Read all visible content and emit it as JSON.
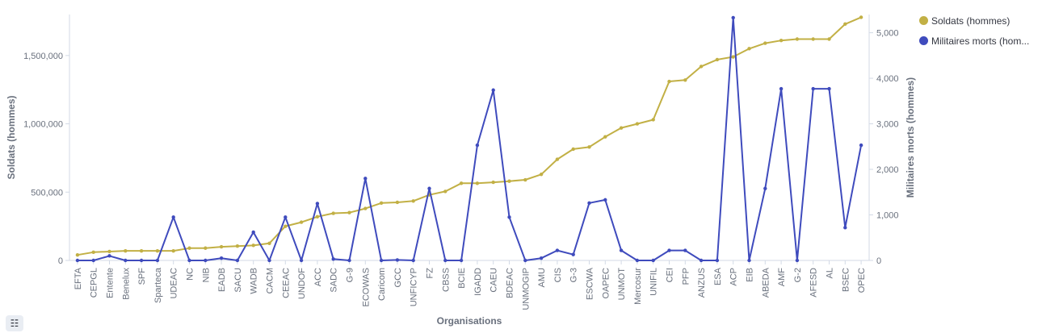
{
  "chart_data": {
    "type": "line",
    "xlabel": "Organisations",
    "ylabel_left": "Soldats (hommes)",
    "ylabel_right": "Militaires morts (hommes)",
    "ylim_left": [
      0,
      1800000
    ],
    "ylim_right": [
      0,
      5400
    ],
    "yticks_left": [
      0,
      500000,
      1000000,
      1500000
    ],
    "yticks_left_labels": [
      "0",
      "500,000",
      "1,000,000",
      "1,500,000"
    ],
    "yticks_right": [
      0,
      1000,
      2000,
      3000,
      4000,
      5000
    ],
    "yticks_right_labels": [
      "0",
      "1,000",
      "2,000",
      "3,000",
      "4,000",
      "5,000"
    ],
    "grid": false,
    "legend_position": "top-right",
    "categories": [
      "EFTA",
      "CEPGL",
      "Entente",
      "Benelux",
      "SPF",
      "Sparteca",
      "UDEAC",
      "NC",
      "NIB",
      "EADB",
      "SACU",
      "WADB",
      "CACM",
      "CEEAC",
      "UNDOF",
      "ACC",
      "SADC",
      "G-9",
      "ECOWAS",
      "Caricom",
      "GCC",
      "UNFICYP",
      "FZ",
      "CBSS",
      "BCIE",
      "IGADD",
      "CAEU",
      "BDEAC",
      "UNMOGIP",
      "AMU",
      "CIS",
      "G-3",
      "ESCWA",
      "OAPEC",
      "UNMOT",
      "Mercosur",
      "UNIFIL",
      "CEI",
      "PFP",
      "ANZUS",
      "ESA",
      "ACP",
      "EIB",
      "ABEDA",
      "AMF",
      "G-2",
      "AFESD",
      "AL",
      "BSEC",
      "OPEC"
    ],
    "series": [
      {
        "name": "Soldats (hommes)",
        "axis": "left",
        "color": "#c2b045",
        "values": [
          40000,
          60000,
          65000,
          70000,
          70000,
          70000,
          70000,
          90000,
          90000,
          100000,
          105000,
          110000,
          125000,
          250000,
          280000,
          320000,
          345000,
          350000,
          380000,
          420000,
          425000,
          435000,
          480000,
          505000,
          565000,
          565000,
          572000,
          580000,
          590000,
          630000,
          740000,
          815000,
          830000,
          905000,
          970000,
          1000000,
          1030000,
          1310000,
          1320000,
          1420000,
          1470000,
          1490000,
          1550000,
          1590000,
          1610000,
          1620000,
          1620000,
          1620000,
          1730000,
          1780000
        ]
      },
      {
        "name": "Militaires morts (hom...",
        "axis": "right",
        "color": "#3f4bbd",
        "values": [
          0,
          0,
          100,
          0,
          0,
          0,
          950,
          0,
          0,
          50,
          0,
          620,
          0,
          950,
          0,
          1250,
          30,
          0,
          1800,
          0,
          10,
          0,
          1580,
          0,
          0,
          2530,
          3740,
          950,
          0,
          50,
          220,
          130,
          1260,
          1330,
          220,
          0,
          0,
          220,
          220,
          0,
          0,
          5330,
          0,
          1580,
          3770,
          0,
          3770,
          3770,
          720,
          2530
        ]
      }
    ]
  },
  "legend_toggle_glyph": "☷"
}
